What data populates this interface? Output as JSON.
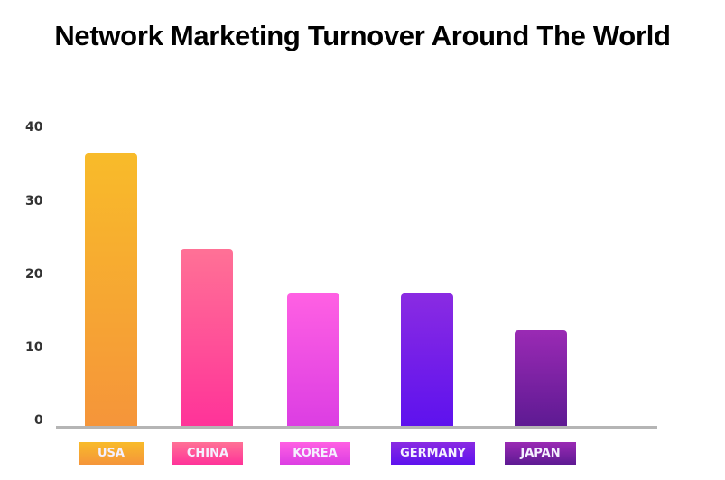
{
  "title": "Network Marketing Turnover Around The World",
  "y_ticks": [
    "40",
    "30",
    "20",
    "10",
    "0"
  ],
  "chart_data": {
    "type": "bar",
    "title": "Network Marketing Turnover Around The World",
    "categories": [
      "USA",
      "CHINA",
      "KOREA",
      "GERMANY",
      "JAPAN"
    ],
    "values": [
      37,
      24,
      18,
      18,
      13
    ],
    "xlabel": "",
    "ylabel": "",
    "ylim": [
      0,
      40
    ],
    "yticks": [
      0,
      10,
      20,
      30,
      40
    ],
    "grid": false,
    "legend": "none (category labels shown as colored tags below axis)",
    "colors": [
      [
        "#f8bb2a",
        "#f5953a"
      ],
      [
        "#ff7196",
        "#ff3399"
      ],
      [
        "#ff60e3",
        "#dc3ee3"
      ],
      [
        "#8a2be2",
        "#5e12ee"
      ],
      [
        "#9a2ab4",
        "#5e1a93"
      ]
    ]
  }
}
